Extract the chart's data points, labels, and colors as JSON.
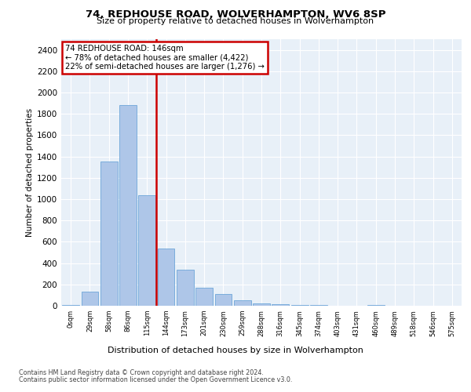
{
  "title1": "74, REDHOUSE ROAD, WOLVERHAMPTON, WV6 8SP",
  "title2": "Size of property relative to detached houses in Wolverhampton",
  "xlabel": "Distribution of detached houses by size in Wolverhampton",
  "ylabel": "Number of detached properties",
  "categories": [
    "0sqm",
    "29sqm",
    "58sqm",
    "86sqm",
    "115sqm",
    "144sqm",
    "173sqm",
    "201sqm",
    "230sqm",
    "259sqm",
    "288sqm",
    "316sqm",
    "345sqm",
    "374sqm",
    "403sqm",
    "431sqm",
    "460sqm",
    "489sqm",
    "518sqm",
    "546sqm",
    "575sqm"
  ],
  "bar_values": [
    5,
    130,
    1350,
    1880,
    1040,
    540,
    340,
    170,
    110,
    55,
    25,
    15,
    8,
    5,
    0,
    0,
    10,
    0,
    0,
    0,
    3
  ],
  "bar_color": "#aec6e8",
  "bar_edge_color": "#5b9bd5",
  "vline_color": "#cc0000",
  "vline_pos": 4.5,
  "annotation_line1": "74 REDHOUSE ROAD: 146sqm",
  "annotation_line2": "← 78% of detached houses are smaller (4,422)",
  "annotation_line3": "22% of semi-detached houses are larger (1,276) →",
  "annotation_box_edgecolor": "#cc0000",
  "ylim": [
    0,
    2500
  ],
  "yticks": [
    0,
    200,
    400,
    600,
    800,
    1000,
    1200,
    1400,
    1600,
    1800,
    2000,
    2200,
    2400
  ],
  "bg_color": "#e8f0f8",
  "grid_color": "#ffffff",
  "footer1": "Contains HM Land Registry data © Crown copyright and database right 2024.",
  "footer2": "Contains public sector information licensed under the Open Government Licence v3.0."
}
